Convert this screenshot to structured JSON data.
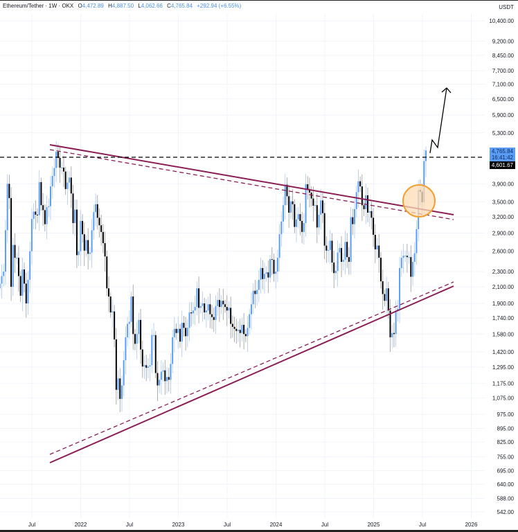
{
  "header": {
    "symbol": "Ethereum/Tether · 1W · OKX",
    "o_label": "O",
    "o": "4,472.89",
    "h_label": "H",
    "h": "4,887.50",
    "l_label": "L",
    "l": "4,062.66",
    "c_label": "C",
    "c": "4,765.84",
    "change": "+292.94 (+6.55%)"
  },
  "price_axis": {
    "unit": "USDT",
    "current_price": "4,765.84",
    "countdown": "16:41:42",
    "level_price": "4,601.67"
  },
  "colors": {
    "up": "#5b9cf6",
    "down": "#000000",
    "trendline": "#8b1d55",
    "highlight_fill": "#fddcb5",
    "highlight_stroke": "#f0a030"
  },
  "chart_data": {
    "type": "candlestick",
    "interval": "1W",
    "scale": "log",
    "grid": true,
    "ylim": [
      542,
      10400
    ],
    "yticks": [
      10400,
      9200,
      8450,
      7700,
      7100,
      6500,
      5900,
      5300,
      3900,
      3500,
      3200,
      2900,
      2600,
      2300,
      2100,
      1900,
      1740,
      1580,
      1420,
      1295,
      1175,
      1075,
      975,
      895,
      825,
      755,
      695,
      640,
      588,
      542
    ],
    "ytick_labels": [
      "10,400.00",
      "9,200.00",
      "8,450.00",
      "7,700.00",
      "7,100.00",
      "6,500.00",
      "5,900.00",
      "5,300.00",
      "3,900.00",
      "3,500.00",
      "3,200.00",
      "2,900.00",
      "2,600.00",
      "2,300.00",
      "2,100.00",
      "1,900.00",
      "1,740.00",
      "1,580.00",
      "1,420.00",
      "1,295.00",
      "1,175.00",
      "1,075.00",
      "975.00",
      "895.00",
      "825.00",
      "755.00",
      "695.00",
      "640.00",
      "588.00",
      "542.00"
    ],
    "xtick_labels": [
      "Jul",
      "2022",
      "Jul",
      "2023",
      "Jul",
      "2024",
      "Jul",
      "2025",
      "Jul",
      "2026"
    ],
    "first_week": "2021-03-22",
    "first_open": 1790,
    "last_candle": {
      "open": 4472.89,
      "high": 4887.5,
      "low": 4062.66,
      "close": 4765.84
    },
    "weekly_close": [
      1690,
      2080,
      2140,
      2240,
      2300,
      2950,
      3900,
      3580,
      2100,
      2700,
      2500,
      2500,
      2240,
      1990,
      2330,
      2140,
      1900,
      2190,
      2600,
      3160,
      3300,
      3240,
      3230,
      3940,
      3430,
      3330,
      3060,
      3390,
      3410,
      3840,
      4090,
      4290,
      4730,
      4560,
      4300,
      4300,
      4200,
      3780,
      3930,
      4050,
      3680,
      3080,
      3340,
      2540,
      2600,
      3120,
      2880,
      2610,
      2780,
      2560,
      2580,
      2950,
      3290,
      3450,
      3180,
      3040,
      2920,
      2730,
      2520,
      2080,
      1980,
      1800,
      1810,
      1530,
      1130,
      1210,
      1070,
      1160,
      1350,
      1550,
      1680,
      1700,
      1980,
      1580,
      1490,
      1580,
      1720,
      1440,
      1300,
      1310,
      1290,
      1300,
      1310,
      1570,
      1570,
      1250,
      1160,
      1200,
      1260,
      1270,
      1190,
      1220,
      1200,
      1320,
      1550,
      1630,
      1590,
      1630,
      1510,
      1690,
      1640,
      1560,
      1640,
      1800,
      1790,
      1820,
      1860,
      2080,
      1850,
      1870,
      1900,
      1800,
      1820,
      1890,
      1780,
      1750,
      1720,
      1870,
      1940,
      1860,
      1930,
      1890,
      1860,
      1820,
      1850,
      1680,
      1650,
      1630,
      1610,
      1620,
      1590,
      1670,
      1580,
      1560,
      1640,
      1780,
      1890,
      2050,
      2010,
      2060,
      2190,
      2350,
      2200,
      2270,
      2290,
      2220,
      2480,
      2470,
      2270,
      2300,
      2500,
      2880,
      3110,
      3430,
      3880,
      3620,
      3280,
      3510,
      3450,
      3010,
      3150,
      3250,
      3120,
      2920,
      3080,
      3890,
      3780,
      3700,
      3570,
      3420,
      3430,
      3000,
      3240,
      3530,
      3270,
      2690,
      2610,
      2620,
      2770,
      2430,
      2280,
      2310,
      2580,
      2650,
      2440,
      2470,
      2750,
      2510,
      2440,
      3190,
      3060,
      3350,
      3710,
      3960,
      3840,
      3430,
      3350,
      3640,
      3280,
      3310,
      3180,
      2870,
      2630,
      2690,
      2500,
      2170,
      2010,
      1930,
      2080,
      1820,
      1550,
      1590,
      1580,
      1820,
      1840,
      2350,
      2500,
      2530,
      2530,
      2510,
      2510,
      2230,
      2440,
      2570,
      2970,
      3760,
      3720,
      3490,
      4472.89,
      4765.84
    ]
  }
}
